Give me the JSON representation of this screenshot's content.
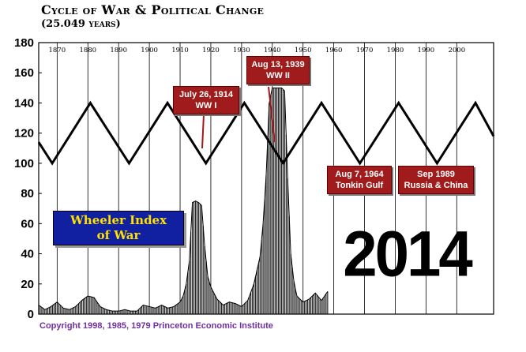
{
  "chart_data": {
    "type": "line",
    "title": "Cycle of War & Political Change",
    "subtitle": "(25.049 years)",
    "ylim": [
      0,
      180
    ],
    "y_ticks": [
      0,
      20,
      40,
      60,
      80,
      100,
      120,
      140,
      160,
      180
    ],
    "xlim": [
      1864,
      2012
    ],
    "x_ticks": [
      "1870",
      "1880",
      "1890",
      "1900",
      "1910",
      "1920",
      "1930",
      "1940",
      "1950",
      "1960",
      "1970",
      "1980",
      "1990",
      "2000"
    ],
    "grid": true,
    "series": [
      {
        "name": "",
        "x": [
          1864,
          1868.4,
          1880.8,
          1893.4,
          1905.9,
          1918.4,
          1930.9,
          1943.5,
          1956.0,
          1968.5,
          1981.1,
          1993.6,
          2006.1,
          2012
        ],
        "values": [
          114,
          100,
          140,
          100,
          140,
          100,
          140,
          100,
          140,
          100,
          140,
          100,
          140,
          118
        ]
      },
      {
        "name": "Wheeler Index of War",
        "x": [
          1864,
          1866,
          1868,
          1870,
          1872,
          1874,
          1876,
          1878,
          1880,
          1882,
          1884,
          1886,
          1888,
          1890,
          1892,
          1894,
          1896,
          1898,
          1900,
          1902,
          1904,
          1906,
          1908,
          1910,
          1911,
          1912,
          1913,
          1914,
          1915,
          1916,
          1917,
          1918,
          1919,
          1920,
          1922,
          1924,
          1926,
          1928,
          1930,
          1932,
          1934,
          1936,
          1937,
          1938,
          1939,
          1940,
          1941,
          1942,
          1943,
          1944,
          1945,
          1946,
          1947,
          1948,
          1950,
          1952,
          1954,
          1956,
          1958
        ],
        "values": [
          6,
          3,
          5,
          8,
          4,
          3,
          5,
          9,
          12,
          11,
          5,
          3,
          2,
          2,
          3,
          2,
          2,
          6,
          5,
          4,
          6,
          4,
          5,
          8,
          12,
          20,
          35,
          74,
          75,
          74,
          72,
          45,
          25,
          18,
          10,
          6,
          8,
          7,
          5,
          9,
          20,
          38,
          60,
          92,
          140,
          150,
          150,
          150,
          150,
          148,
          90,
          40,
          22,
          12,
          8,
          10,
          14,
          9,
          15
        ]
      }
    ],
    "annotations": [
      {
        "date": "July 26, 1914",
        "war": "WW I"
      },
      {
        "date": "Aug 13, 1939",
        "war": "WW II"
      },
      {
        "date": "Aug 7, 1964",
        "war": "Tonkin Gulf"
      },
      {
        "date": "Sep 1989",
        "war": "Russia & China"
      }
    ],
    "legend_label": [
      "Wheeler Index",
      "of War"
    ],
    "big_label": "2014",
    "footer": "Copyright 1998, 1985, 1979 Princeton Economic Institute"
  }
}
